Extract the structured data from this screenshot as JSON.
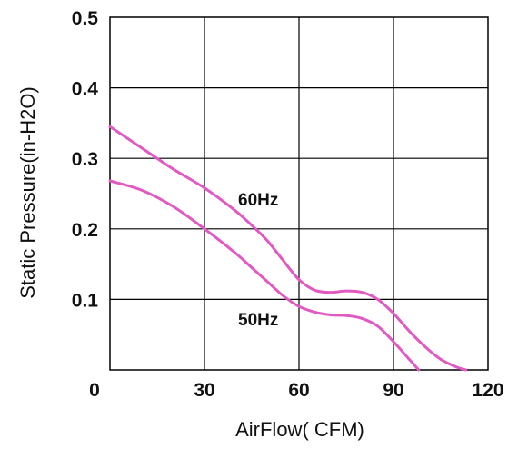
{
  "chart_data": {
    "type": "line",
    "title": "",
    "xlabel": "AirFlow( CFM)",
    "ylabel": "Static Pressure(in-H2O)",
    "xlim": [
      0,
      120
    ],
    "ylim": [
      0,
      0.5
    ],
    "xticks": [
      "0",
      "30",
      "60",
      "90",
      "120"
    ],
    "yticks": [
      "0.1",
      "0.2",
      "0.3",
      "0.4",
      "0.5"
    ],
    "grid": true,
    "line_color": "#e05ac2",
    "series": [
      {
        "name": "60Hz",
        "x": [
          0,
          10,
          20,
          30,
          40,
          45,
          50,
          55,
          60,
          65,
          70,
          75,
          80,
          85,
          90,
          95,
          100,
          105,
          110,
          113
        ],
        "y": [
          0.345,
          0.315,
          0.285,
          0.258,
          0.225,
          0.205,
          0.183,
          0.155,
          0.128,
          0.113,
          0.11,
          0.112,
          0.11,
          0.1,
          0.08,
          0.055,
          0.033,
          0.015,
          0.004,
          0.0
        ]
      },
      {
        "name": "50Hz",
        "x": [
          0,
          10,
          20,
          30,
          40,
          45,
          50,
          55,
          60,
          65,
          70,
          75,
          80,
          85,
          90,
          95,
          98
        ],
        "y": [
          0.268,
          0.255,
          0.232,
          0.2,
          0.165,
          0.145,
          0.125,
          0.105,
          0.09,
          0.082,
          0.078,
          0.077,
          0.073,
          0.062,
          0.04,
          0.015,
          0.0
        ]
      }
    ],
    "annotations": [
      {
        "text": "60Hz",
        "series": "60Hz"
      },
      {
        "text": "50Hz",
        "series": "50Hz"
      }
    ]
  }
}
